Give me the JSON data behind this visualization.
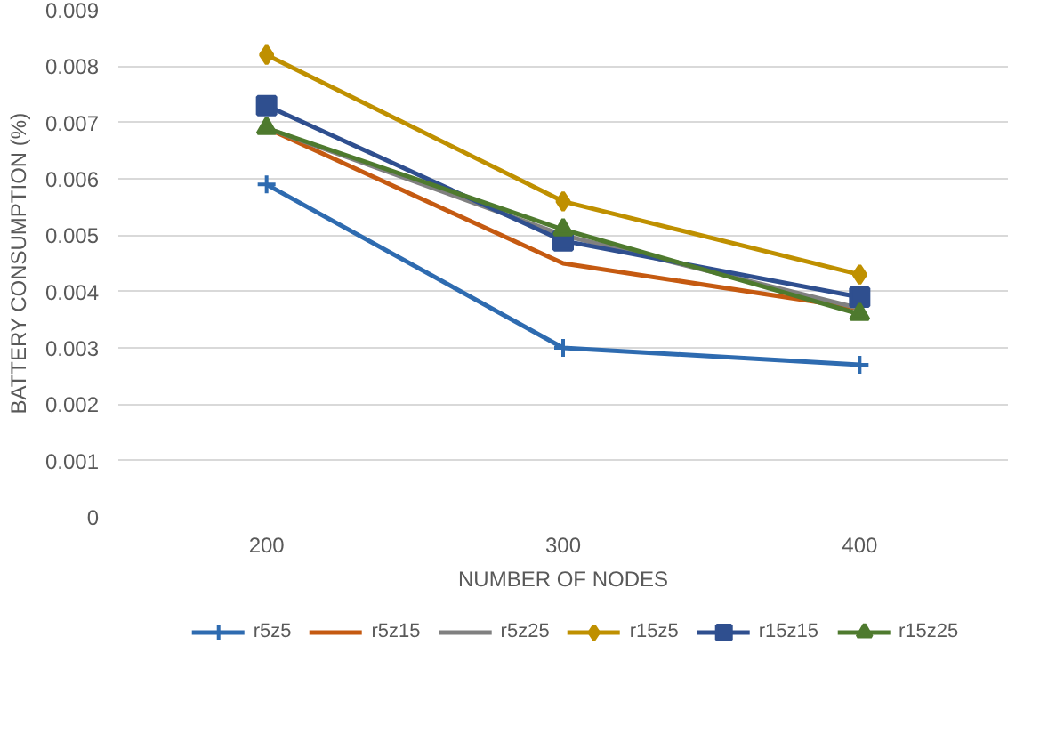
{
  "chart_data": {
    "type": "line",
    "xlabel": "NUMBER OF NODES",
    "ylabel": "BATTERY CONSUMPTION (%)",
    "categories": [
      "200",
      "300",
      "400"
    ],
    "series": [
      {
        "name": "r5z5",
        "color": "#2e6bb0",
        "marker": "cross",
        "values": [
          0.0059,
          0.003,
          0.0027
        ]
      },
      {
        "name": "r5z15",
        "color": "#c55a11",
        "marker": "none",
        "values": [
          0.0069,
          0.0045,
          0.0037
        ]
      },
      {
        "name": "r5z25",
        "color": "#808080",
        "marker": "none",
        "values": [
          0.0069,
          0.005,
          0.0037
        ]
      },
      {
        "name": "r15z5",
        "color": "#bf9000",
        "marker": "diamond",
        "values": [
          0.0082,
          0.0056,
          0.0043
        ]
      },
      {
        "name": "r15z15",
        "color": "#2f4f8f",
        "marker": "square",
        "values": [
          0.0073,
          0.0049,
          0.0039
        ]
      },
      {
        "name": "r15z25",
        "color": "#4e7a2e",
        "marker": "triangle",
        "values": [
          0.0069,
          0.0051,
          0.0036
        ]
      }
    ],
    "ylim": [
      0,
      0.009
    ],
    "yticks": [
      0,
      0.001,
      0.002,
      0.003,
      0.004,
      0.005,
      0.006,
      0.007,
      0.008,
      0.009
    ],
    "grid": "y",
    "legend": "bottom"
  }
}
